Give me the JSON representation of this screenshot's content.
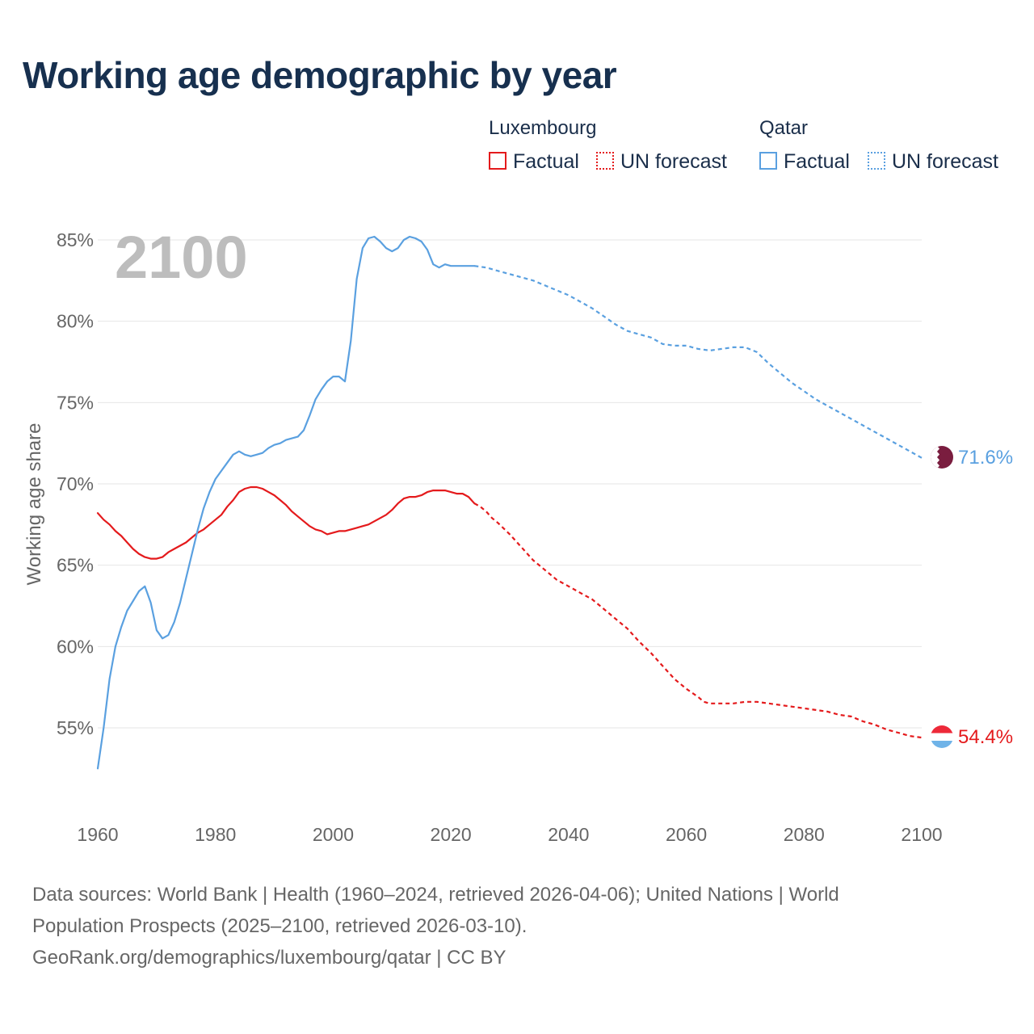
{
  "chart_data": {
    "type": "line",
    "title": "Working age demographic by year",
    "ylabel": "Working age share",
    "xlabel": "",
    "xlim": [
      1960,
      2100
    ],
    "ylim": [
      51,
      86
    ],
    "x_ticks": [
      1960,
      1980,
      2000,
      2020,
      2040,
      2060,
      2080,
      2100
    ],
    "y_ticks": [
      55,
      60,
      65,
      70,
      75,
      80,
      85
    ],
    "y_tick_labels": [
      "55%",
      "60%",
      "65%",
      "70%",
      "75%",
      "80%",
      "85%"
    ],
    "x_tick_labels": [
      "1960",
      "1980",
      "2000",
      "2020",
      "2040",
      "2060",
      "2080",
      "2100"
    ],
    "grid": true,
    "year_watermark": "2100",
    "legend": {
      "groups": [
        {
          "country": "Luxembourg",
          "color": "#e41a1c",
          "factual_label": "Factual",
          "forecast_label": "UN forecast"
        },
        {
          "country": "Qatar",
          "color": "#5aa0e0",
          "factual_label": "Factual",
          "forecast_label": "UN forecast"
        }
      ]
    },
    "series": [
      {
        "name": "Luxembourg",
        "color": "#e41a1c",
        "end_label": "54.4%",
        "flag_icon": "luxembourg-flag-icon",
        "factual": [
          [
            1960,
            68.2
          ],
          [
            1961,
            67.8
          ],
          [
            1962,
            67.5
          ],
          [
            1963,
            67.1
          ],
          [
            1964,
            66.8
          ],
          [
            1965,
            66.4
          ],
          [
            1966,
            66.0
          ],
          [
            1967,
            65.7
          ],
          [
            1968,
            65.5
          ],
          [
            1969,
            65.4
          ],
          [
            1970,
            65.4
          ],
          [
            1971,
            65.5
          ],
          [
            1972,
            65.8
          ],
          [
            1973,
            66.0
          ],
          [
            1974,
            66.2
          ],
          [
            1975,
            66.4
          ],
          [
            1976,
            66.7
          ],
          [
            1977,
            67.0
          ],
          [
            1978,
            67.2
          ],
          [
            1979,
            67.5
          ],
          [
            1980,
            67.8
          ],
          [
            1981,
            68.1
          ],
          [
            1982,
            68.6
          ],
          [
            1983,
            69.0
          ],
          [
            1984,
            69.5
          ],
          [
            1985,
            69.7
          ],
          [
            1986,
            69.8
          ],
          [
            1987,
            69.8
          ],
          [
            1988,
            69.7
          ],
          [
            1989,
            69.5
          ],
          [
            1990,
            69.3
          ],
          [
            1991,
            69.0
          ],
          [
            1992,
            68.7
          ],
          [
            1993,
            68.3
          ],
          [
            1994,
            68.0
          ],
          [
            1995,
            67.7
          ],
          [
            1996,
            67.4
          ],
          [
            1997,
            67.2
          ],
          [
            1998,
            67.1
          ],
          [
            1999,
            66.9
          ],
          [
            2000,
            67.0
          ],
          [
            2001,
            67.1
          ],
          [
            2002,
            67.1
          ],
          [
            2003,
            67.2
          ],
          [
            2004,
            67.3
          ],
          [
            2005,
            67.4
          ],
          [
            2006,
            67.5
          ],
          [
            2007,
            67.7
          ],
          [
            2008,
            67.9
          ],
          [
            2009,
            68.1
          ],
          [
            2010,
            68.4
          ],
          [
            2011,
            68.8
          ],
          [
            2012,
            69.1
          ],
          [
            2013,
            69.2
          ],
          [
            2014,
            69.2
          ],
          [
            2015,
            69.3
          ],
          [
            2016,
            69.5
          ],
          [
            2017,
            69.6
          ],
          [
            2018,
            69.6
          ],
          [
            2019,
            69.6
          ],
          [
            2020,
            69.5
          ],
          [
            2021,
            69.4
          ],
          [
            2022,
            69.4
          ],
          [
            2023,
            69.2
          ],
          [
            2024,
            68.8
          ]
        ],
        "forecast": [
          [
            2024,
            68.8
          ],
          [
            2025,
            68.6
          ],
          [
            2026,
            68.3
          ],
          [
            2027,
            67.9
          ],
          [
            2028,
            67.6
          ],
          [
            2030,
            66.9
          ],
          [
            2032,
            66.1
          ],
          [
            2034,
            65.3
          ],
          [
            2036,
            64.7
          ],
          [
            2038,
            64.1
          ],
          [
            2040,
            63.7
          ],
          [
            2042,
            63.3
          ],
          [
            2044,
            62.9
          ],
          [
            2046,
            62.3
          ],
          [
            2048,
            61.7
          ],
          [
            2050,
            61.1
          ],
          [
            2052,
            60.3
          ],
          [
            2054,
            59.6
          ],
          [
            2056,
            58.8
          ],
          [
            2058,
            58.0
          ],
          [
            2060,
            57.4
          ],
          [
            2062,
            56.9
          ],
          [
            2063,
            56.6
          ],
          [
            2064,
            56.5
          ],
          [
            2066,
            56.5
          ],
          [
            2068,
            56.5
          ],
          [
            2070,
            56.6
          ],
          [
            2072,
            56.6
          ],
          [
            2074,
            56.5
          ],
          [
            2076,
            56.4
          ],
          [
            2078,
            56.3
          ],
          [
            2080,
            56.2
          ],
          [
            2082,
            56.1
          ],
          [
            2084,
            56.0
          ],
          [
            2086,
            55.8
          ],
          [
            2088,
            55.7
          ],
          [
            2090,
            55.4
          ],
          [
            2092,
            55.2
          ],
          [
            2094,
            54.9
          ],
          [
            2096,
            54.7
          ],
          [
            2098,
            54.5
          ],
          [
            2100,
            54.4
          ]
        ]
      },
      {
        "name": "Qatar",
        "color": "#5aa0e0",
        "end_label": "71.6%",
        "flag_icon": "qatar-flag-icon",
        "factual": [
          [
            1960,
            52.5
          ],
          [
            1961,
            55.0
          ],
          [
            1962,
            58.0
          ],
          [
            1963,
            60.0
          ],
          [
            1964,
            61.2
          ],
          [
            1965,
            62.2
          ],
          [
            1966,
            62.8
          ],
          [
            1967,
            63.4
          ],
          [
            1968,
            63.7
          ],
          [
            1969,
            62.7
          ],
          [
            1970,
            61.0
          ],
          [
            1971,
            60.5
          ],
          [
            1972,
            60.7
          ],
          [
            1973,
            61.5
          ],
          [
            1974,
            62.7
          ],
          [
            1975,
            64.2
          ],
          [
            1976,
            65.7
          ],
          [
            1977,
            67.2
          ],
          [
            1978,
            68.5
          ],
          [
            1979,
            69.5
          ],
          [
            1980,
            70.3
          ],
          [
            1981,
            70.8
          ],
          [
            1982,
            71.3
          ],
          [
            1983,
            71.8
          ],
          [
            1984,
            72.0
          ],
          [
            1985,
            71.8
          ],
          [
            1986,
            71.7
          ],
          [
            1987,
            71.8
          ],
          [
            1988,
            71.9
          ],
          [
            1989,
            72.2
          ],
          [
            1990,
            72.4
          ],
          [
            1991,
            72.5
          ],
          [
            1992,
            72.7
          ],
          [
            1993,
            72.8
          ],
          [
            1994,
            72.9
          ],
          [
            1995,
            73.3
          ],
          [
            1996,
            74.2
          ],
          [
            1997,
            75.2
          ],
          [
            1998,
            75.8
          ],
          [
            1999,
            76.3
          ],
          [
            2000,
            76.6
          ],
          [
            2001,
            76.6
          ],
          [
            2002,
            76.3
          ],
          [
            2003,
            78.8
          ],
          [
            2004,
            82.6
          ],
          [
            2005,
            84.5
          ],
          [
            2006,
            85.1
          ],
          [
            2007,
            85.2
          ],
          [
            2008,
            84.9
          ],
          [
            2009,
            84.5
          ],
          [
            2010,
            84.3
          ],
          [
            2011,
            84.5
          ],
          [
            2012,
            85.0
          ],
          [
            2013,
            85.2
          ],
          [
            2014,
            85.1
          ],
          [
            2015,
            84.9
          ],
          [
            2016,
            84.4
          ],
          [
            2017,
            83.5
          ],
          [
            2018,
            83.3
          ],
          [
            2019,
            83.5
          ],
          [
            2020,
            83.4
          ],
          [
            2021,
            83.4
          ],
          [
            2022,
            83.4
          ],
          [
            2023,
            83.4
          ],
          [
            2024,
            83.4
          ]
        ],
        "forecast": [
          [
            2024,
            83.4
          ],
          [
            2026,
            83.3
          ],
          [
            2028,
            83.1
          ],
          [
            2030,
            82.9
          ],
          [
            2032,
            82.7
          ],
          [
            2034,
            82.5
          ],
          [
            2036,
            82.2
          ],
          [
            2038,
            81.9
          ],
          [
            2040,
            81.6
          ],
          [
            2042,
            81.2
          ],
          [
            2044,
            80.8
          ],
          [
            2046,
            80.3
          ],
          [
            2048,
            79.8
          ],
          [
            2050,
            79.4
          ],
          [
            2052,
            79.2
          ],
          [
            2054,
            79.0
          ],
          [
            2056,
            78.6
          ],
          [
            2058,
            78.5
          ],
          [
            2060,
            78.5
          ],
          [
            2062,
            78.3
          ],
          [
            2064,
            78.2
          ],
          [
            2066,
            78.3
          ],
          [
            2068,
            78.4
          ],
          [
            2070,
            78.4
          ],
          [
            2072,
            78.1
          ],
          [
            2074,
            77.4
          ],
          [
            2076,
            76.8
          ],
          [
            2078,
            76.2
          ],
          [
            2080,
            75.7
          ],
          [
            2082,
            75.2
          ],
          [
            2084,
            74.8
          ],
          [
            2086,
            74.4
          ],
          [
            2088,
            74.0
          ],
          [
            2090,
            73.6
          ],
          [
            2092,
            73.2
          ],
          [
            2094,
            72.8
          ],
          [
            2096,
            72.4
          ],
          [
            2098,
            72.0
          ],
          [
            2100,
            71.6
          ]
        ]
      }
    ]
  },
  "footer": {
    "line1": "Data sources: World Bank | Health (1960–2024, retrieved 2026-04-06); United Nations | World",
    "line2": "Population Prospects (2025–2100, retrieved 2026-03-10).",
    "line3": "GeoRank.org/demographics/luxembourg/qatar | CC BY"
  }
}
